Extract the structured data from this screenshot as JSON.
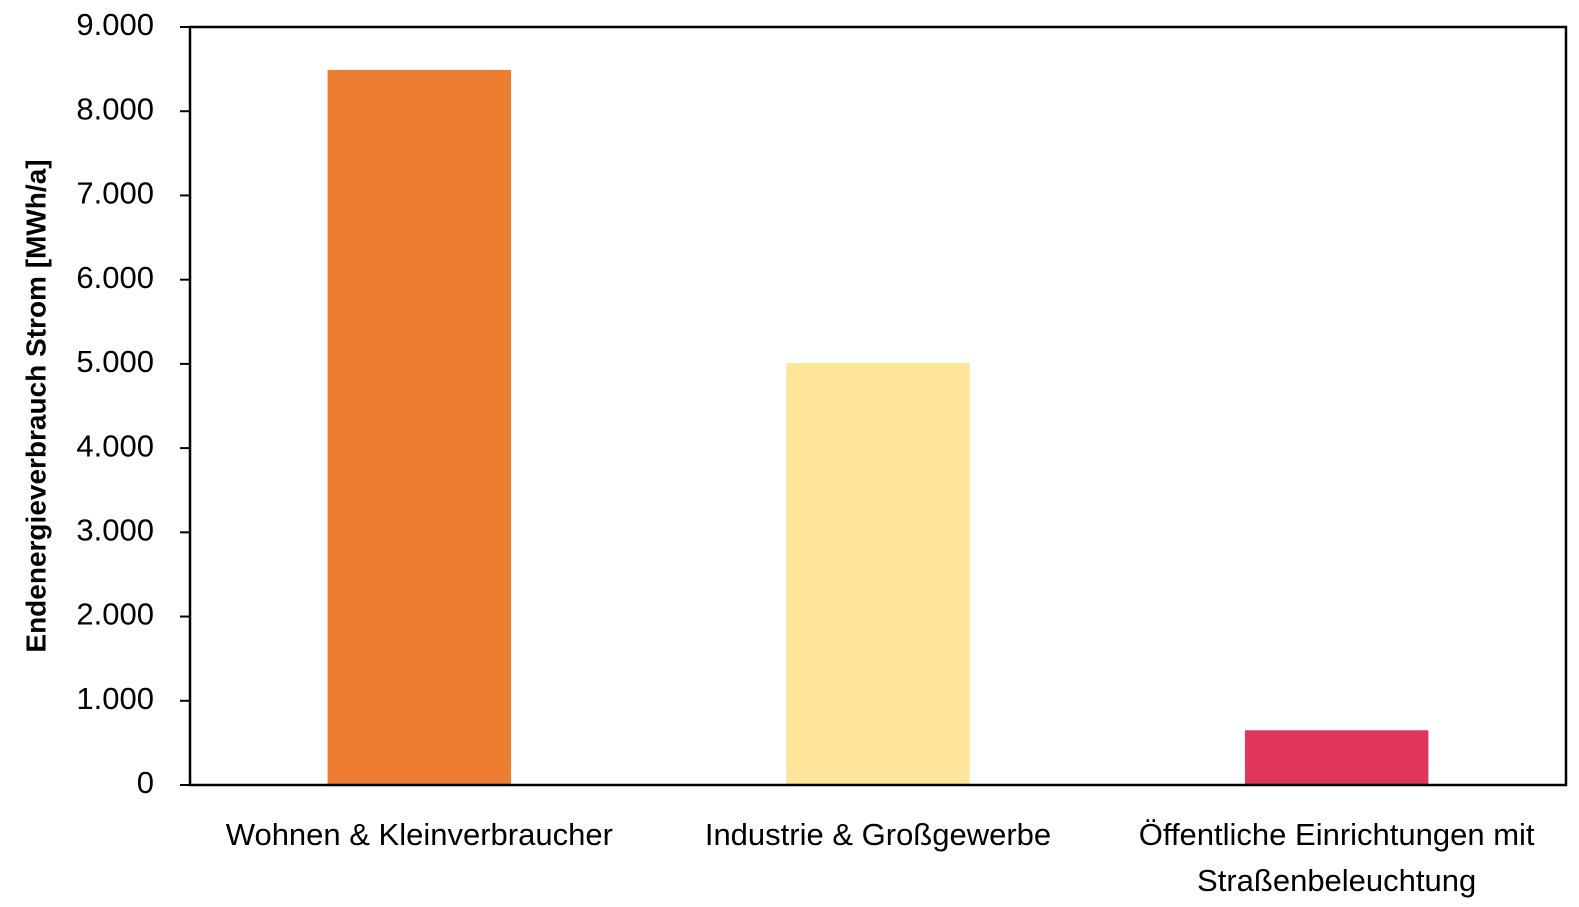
{
  "chart_data": {
    "type": "bar",
    "y_label": "Endenergieverbrauch Strom [MWh/a]",
    "categories": [
      "Wohnen & Kleinverbraucher",
      "Industrie & Großgewerbe",
      "Öffentliche Einrichtungen mit Straßenbeleuchtung"
    ],
    "values": [
      8490,
      5010,
      650
    ],
    "colors": [
      "#ed7d31",
      "#fee599",
      "#e0365a"
    ],
    "ylim": [
      0,
      9000
    ],
    "yticks": [
      0,
      {
        "value": 1000,
        "label": "1.000"
      },
      {
        "value": 2000,
        "label": "2.000"
      },
      {
        "value": 3000,
        "label": "3.000"
      },
      {
        "value": 4000,
        "label": "4.000"
      },
      {
        "value": 5000,
        "label": "5.000"
      },
      {
        "value": 6000,
        "label": "6.000"
      },
      {
        "value": 7000,
        "label": "7.000"
      },
      {
        "value": 8000,
        "label": "8.000"
      },
      {
        "value": 9000,
        "label": "9.000"
      }
    ],
    "grid": false
  }
}
